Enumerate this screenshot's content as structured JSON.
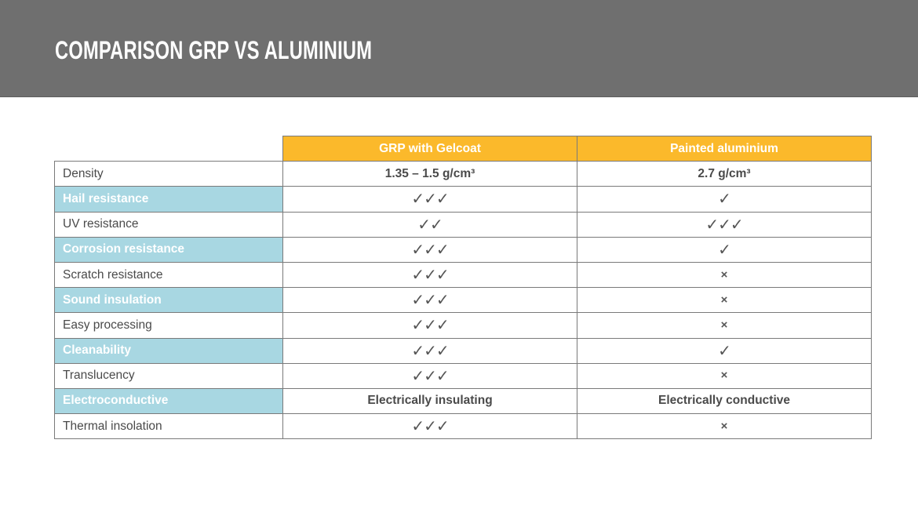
{
  "title": "COMPARISON GRP VS ALUMINIUM",
  "colors": {
    "banner": "#6f6f6f",
    "header": "#fbb92b",
    "highlight": "#a8d7e2"
  },
  "columns": [
    "GRP with Gelcoat",
    "Painted aluminium"
  ],
  "rows": [
    {
      "label": "Density",
      "highlight": false,
      "values": [
        "1.35 – 1.5 g/cm³",
        "2.7 g/cm³"
      ]
    },
    {
      "label": "Hail resistance",
      "highlight": true,
      "values": [
        "✓✓✓",
        "✓"
      ]
    },
    {
      "label": "UV resistance",
      "highlight": false,
      "values": [
        "✓✓",
        "✓✓✓"
      ]
    },
    {
      "label": "Corrosion resistance",
      "highlight": true,
      "values": [
        "✓✓✓",
        "✓"
      ]
    },
    {
      "label": "Scratch resistance",
      "highlight": false,
      "values": [
        "✓✓✓",
        "×"
      ]
    },
    {
      "label": "Sound insulation",
      "highlight": true,
      "values": [
        "✓✓✓",
        "×"
      ]
    },
    {
      "label": "Easy processing",
      "highlight": false,
      "values": [
        "✓✓✓",
        "×"
      ]
    },
    {
      "label": "Cleanability",
      "highlight": true,
      "values": [
        "✓✓✓",
        "✓"
      ]
    },
    {
      "label": "Translucency",
      "highlight": false,
      "values": [
        "✓✓✓",
        "×"
      ]
    },
    {
      "label": "Electroconductive",
      "highlight": true,
      "values": [
        "Electrically insulating",
        "Electrically conductive"
      ]
    },
    {
      "label": "Thermal insolation",
      "highlight": false,
      "values": [
        "✓✓✓",
        "×"
      ]
    }
  ]
}
